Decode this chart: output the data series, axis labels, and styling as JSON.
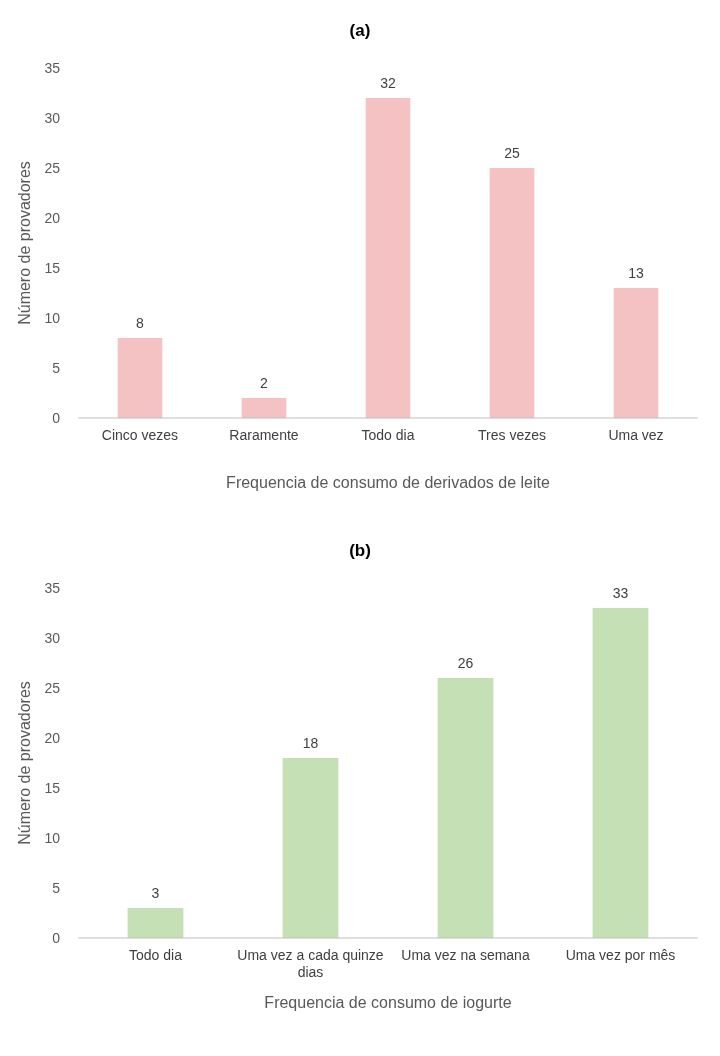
{
  "chart_data": [
    {
      "type": "bar",
      "title": "(a)",
      "xlabel": "Frequencia de consumo de derivados de leite",
      "ylabel": "Número de provadores",
      "categories": [
        "Cinco vezes",
        "Raramente",
        "Todo dia",
        "Tres vezes",
        "Uma vez"
      ],
      "values": [
        8,
        2,
        32,
        25,
        13
      ],
      "color": "#f4c2c2",
      "ylim": [
        0,
        35
      ],
      "yticks": [
        0,
        5,
        10,
        15,
        20,
        25,
        30,
        35
      ],
      "data_labels": true
    },
    {
      "type": "bar",
      "title": "(b)",
      "xlabel": "Frequencia de consumo de iogurte",
      "ylabel": "Número de provadores",
      "categories": [
        "Todo dia",
        "Uma vez a cada quinze dias",
        "Uma vez na semana",
        "Uma vez por mês"
      ],
      "values": [
        3,
        18,
        26,
        33
      ],
      "color": "#c5e0b4",
      "ylim": [
        0,
        35
      ],
      "yticks": [
        0,
        5,
        10,
        15,
        20,
        25,
        30,
        35
      ],
      "data_labels": true
    }
  ]
}
